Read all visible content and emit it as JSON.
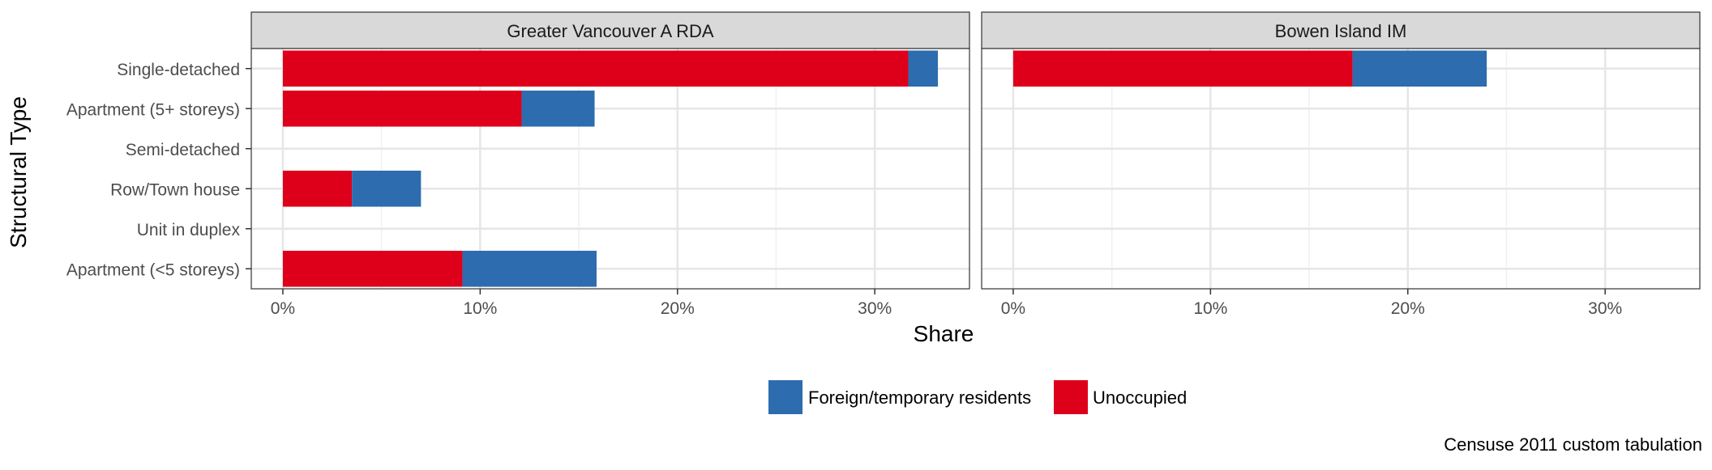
{
  "chart_data": {
    "type": "bar",
    "orientation": "horizontal",
    "stacked": true,
    "xlabel": "Share",
    "ylabel": "Structural Type",
    "caption": "Censuse 2011 custom tabulation",
    "categories": [
      "Single-detached",
      "Apartment (5+ storeys)",
      "Semi-detached",
      "Row/Town house",
      "Unit in duplex",
      "Apartment (<5 storeys)"
    ],
    "x_ticks": [
      "0%",
      "10%",
      "20%",
      "30%"
    ],
    "xlim": [
      -1.6,
      34.8
    ],
    "legend_position": "bottom",
    "series": [
      {
        "name": "Unoccupied",
        "color": "#de001a"
      },
      {
        "name": "Foreign/temporary residents",
        "color": "#2d6cae"
      }
    ],
    "panels": [
      {
        "title": "Greater Vancouver A RDA",
        "values": {
          "Unoccupied": [
            31.7,
            12.1,
            0,
            3.5,
            0,
            9.1
          ],
          "Foreign/temporary residents": [
            1.5,
            3.7,
            0,
            3.5,
            0,
            6.8
          ]
        }
      },
      {
        "title": "Bowen Island IM",
        "values": {
          "Unoccupied": [
            17.2,
            0,
            0,
            0,
            0,
            0
          ],
          "Foreign/temporary residents": [
            6.8,
            0,
            0,
            0,
            0,
            0
          ]
        }
      }
    ]
  }
}
